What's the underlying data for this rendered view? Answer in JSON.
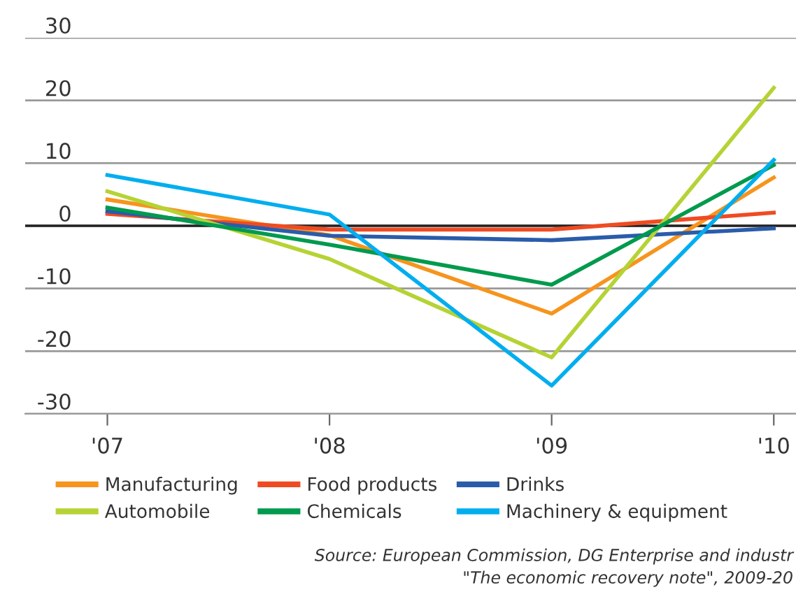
{
  "chart_data": {
    "type": "line",
    "categories": [
      "'07",
      "'08",
      "'09",
      "'10"
    ],
    "series": [
      {
        "name": "Manufacturing",
        "color": "#f7941d",
        "values": [
          4.2,
          -1.5,
          -14,
          7.7
        ]
      },
      {
        "name": "Food products",
        "color": "#ef4b23",
        "values": [
          1.9,
          -0.6,
          -0.6,
          2.1
        ]
      },
      {
        "name": "Drinks",
        "color": "#2a5caa",
        "values": [
          2.3,
          -1.6,
          -2.3,
          -0.4
        ]
      },
      {
        "name": "Automobile",
        "color": "#b5d334",
        "values": [
          5.5,
          -5.3,
          -21,
          22
        ]
      },
      {
        "name": "Chemicals",
        "color": "#009a4e",
        "values": [
          2.9,
          -3,
          -9.4,
          9.7
        ]
      },
      {
        "name": "Machinery & equipment",
        "color": "#00aeef",
        "values": [
          8.1,
          1.8,
          -25.5,
          10.5
        ]
      }
    ],
    "ylim": [
      -30,
      30
    ],
    "yticks": [
      -30,
      -20,
      -10,
      0,
      10,
      20,
      30
    ],
    "grid": "y",
    "legend": "bottom",
    "marker": "none",
    "line_style": "solid",
    "ref_lines": [
      {
        "axis": "y",
        "value": 0,
        "color": "#222222"
      }
    ],
    "annotations": [
      "Source: European Commission, DG Enterprise and industr",
      "\"The economic recovery note\", 2009-20"
    ]
  }
}
